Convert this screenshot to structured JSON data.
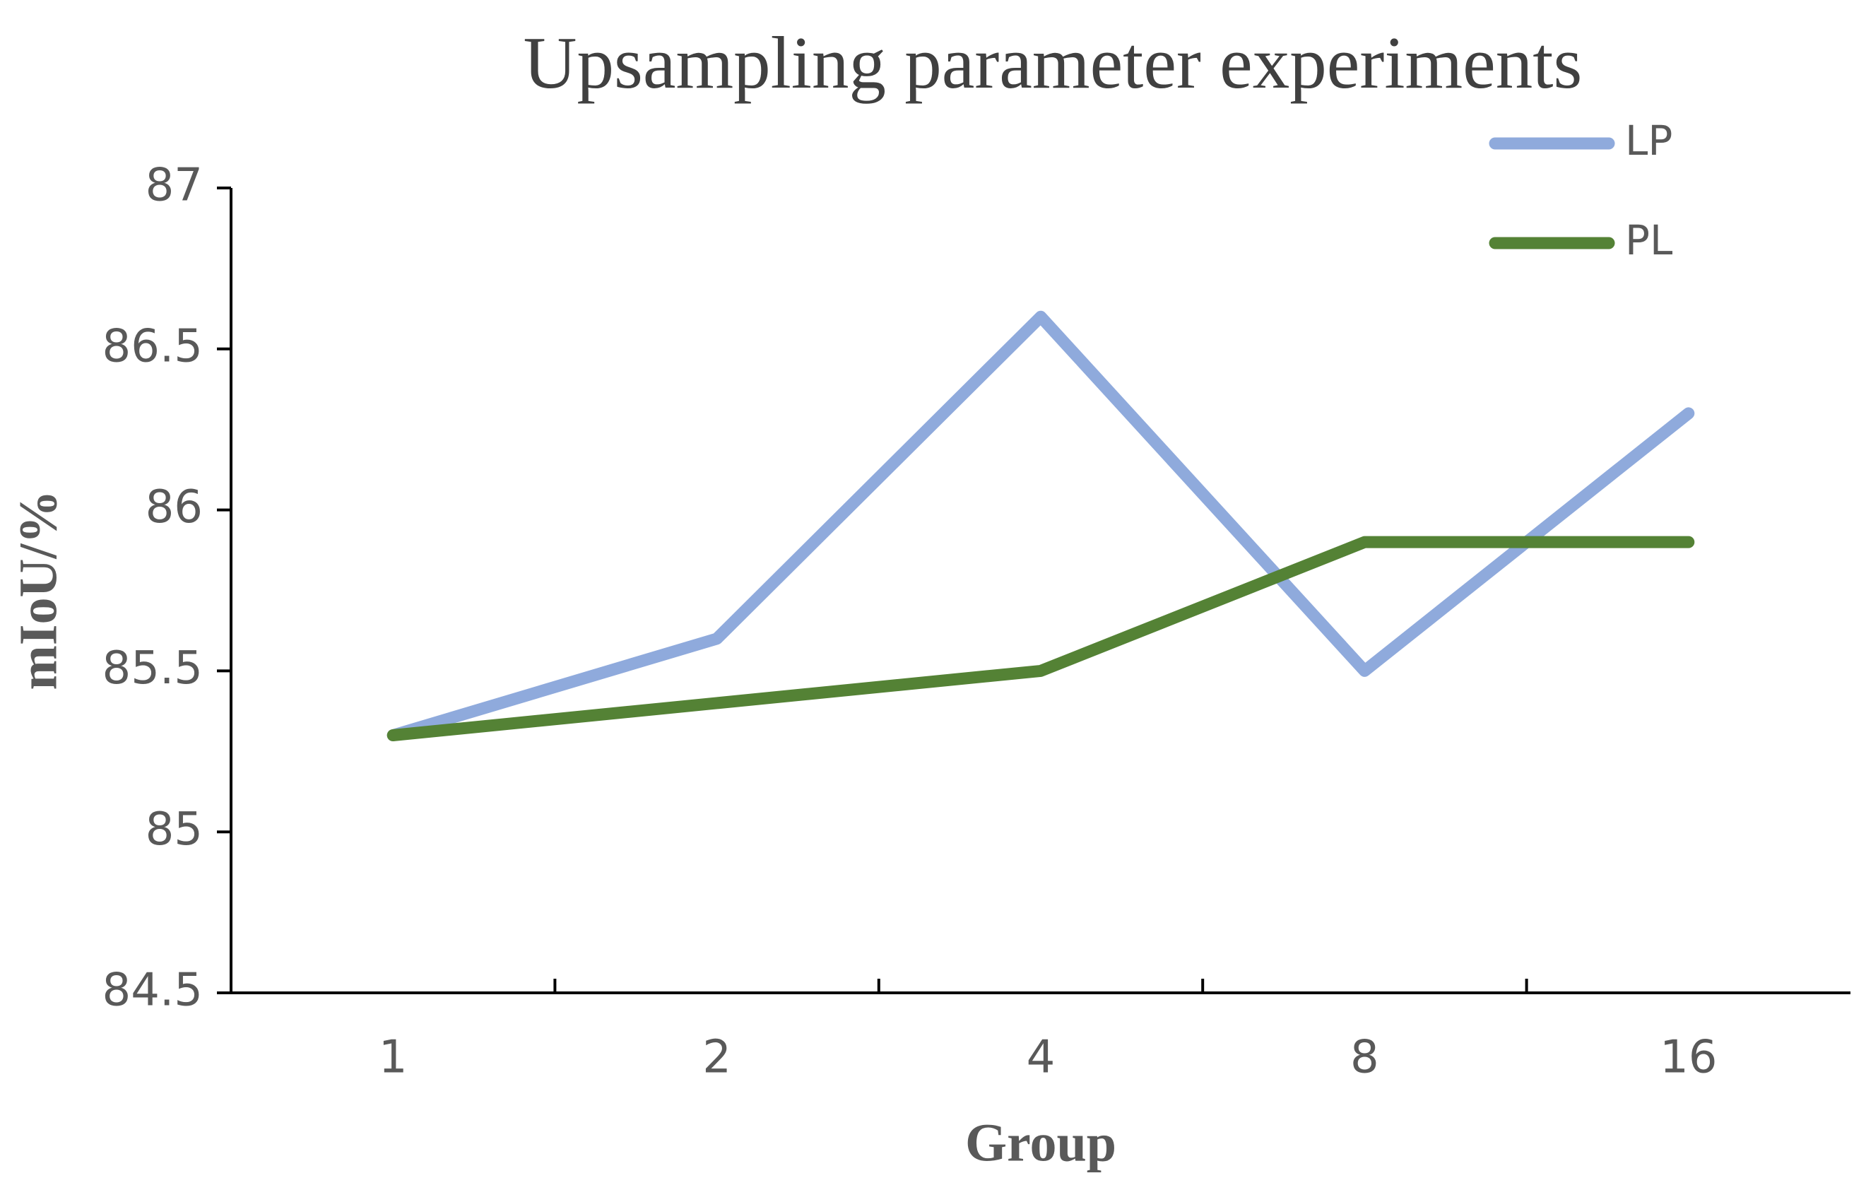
{
  "chart_data": {
    "type": "line",
    "title": "Upsampling parameter experiments",
    "x_label": "Group",
    "y_label": "mIoU/%",
    "categories": [
      "1",
      "2",
      "4",
      "8",
      "16"
    ],
    "series": [
      {
        "name": "LP",
        "color": "#8faadc",
        "values": [
          85.3,
          85.6,
          86.6,
          85.5,
          86.3
        ]
      },
      {
        "name": "PL",
        "color": "#548235",
        "values": [
          85.3,
          85.4,
          85.5,
          85.9,
          85.9
        ]
      }
    ],
    "ylim": [
      84.5,
      87
    ],
    "yticks": [
      84.5,
      85,
      85.5,
      86,
      86.5,
      87
    ],
    "grid": false,
    "legend": "top-right"
  }
}
